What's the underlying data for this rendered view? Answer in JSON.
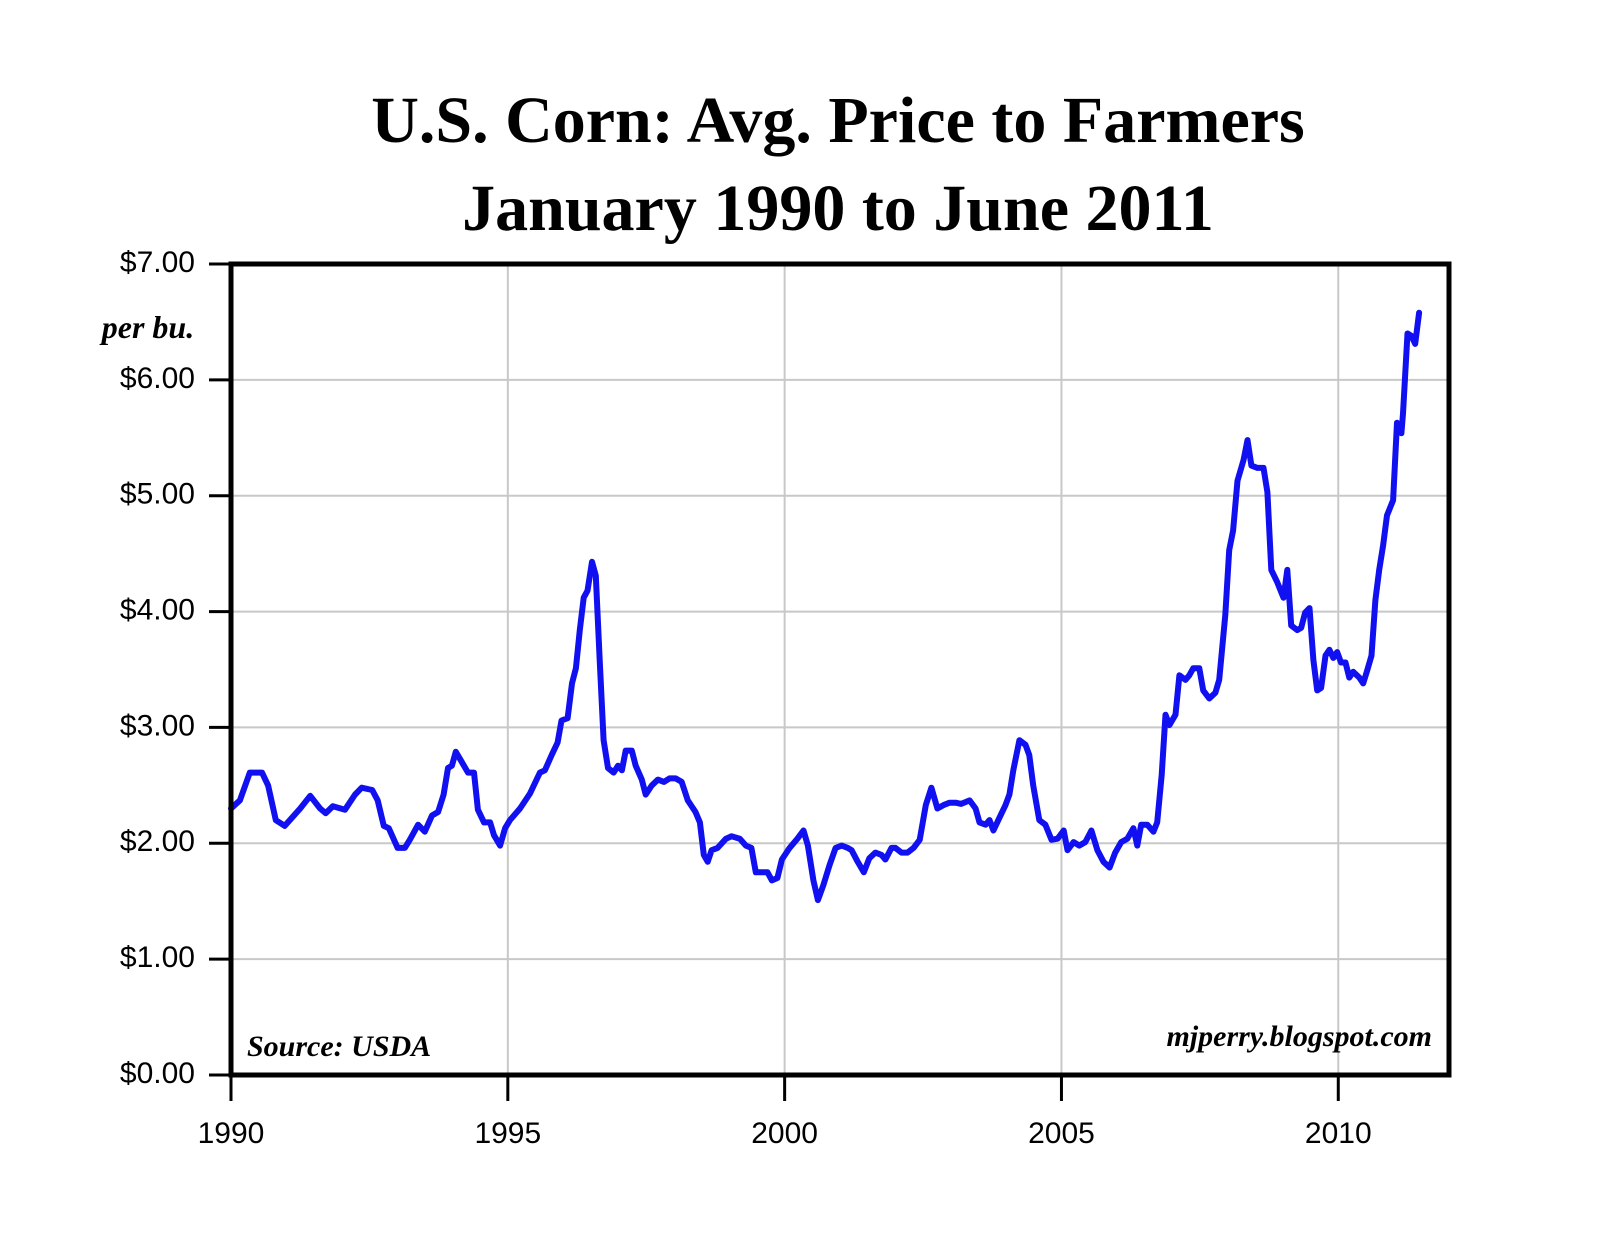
{
  "chart_data": {
    "type": "line",
    "title": "U.S. Corn: Avg. Price to Farmers",
    "subtitle": "January 1990 to June 2011",
    "y_label": "per bu.",
    "annotations": [
      "Source: USDA",
      "mjperry.blogspot.com"
    ],
    "xlim": [
      1990,
      2012
    ],
    "xticks": [
      1990,
      1995,
      2000,
      2005,
      2010
    ],
    "ylim": [
      0,
      7
    ],
    "yticks": [
      {
        "value": 0,
        "label": "$0.00"
      },
      {
        "value": 1,
        "label": "$1.00"
      },
      {
        "value": 2,
        "label": "$2.00"
      },
      {
        "value": 3,
        "label": "$3.00"
      },
      {
        "value": 4,
        "label": "$4.00"
      },
      {
        "value": 5,
        "label": "$5.00"
      },
      {
        "value": 6,
        "label": "$6.00"
      },
      {
        "value": 7,
        "label": "$7.00"
      }
    ],
    "grid": true,
    "x": [
      1990.0,
      1990.16,
      1990.34,
      1990.56,
      1990.67,
      1990.81,
      1990.97,
      1991.25,
      1991.43,
      1991.61,
      1991.71,
      1991.84,
      1992.06,
      1992.24,
      1992.36,
      1992.55,
      1992.65,
      1992.76,
      1992.85,
      1993.01,
      1993.14,
      1993.23,
      1993.38,
      1993.5,
      1993.63,
      1993.74,
      1993.84,
      1993.92,
      1993.99,
      1994.06,
      1994.17,
      1994.28,
      1994.39,
      1994.46,
      1994.57,
      1994.68,
      1994.75,
      1994.86,
      1994.95,
      1995.04,
      1995.22,
      1995.4,
      1995.58,
      1995.67,
      1995.79,
      1995.9,
      1995.97,
      1996.08,
      1996.16,
      1996.23,
      1996.3,
      1996.37,
      1996.44,
      1996.52,
      1996.59,
      1996.66,
      1996.73,
      1996.81,
      1996.91,
      1996.99,
      1997.06,
      1997.13,
      1997.24,
      1997.31,
      1997.42,
      1997.49,
      1997.6,
      1997.71,
      1997.82,
      1997.92,
      1998.03,
      1998.14,
      1998.25,
      1998.39,
      1998.47,
      1998.54,
      1998.61,
      1998.68,
      1998.79,
      1998.94,
      1999.04,
      1999.19,
      1999.3,
      1999.4,
      1999.48,
      1999.58,
      1999.69,
      1999.77,
      1999.87,
      1999.95,
      2000.09,
      2000.23,
      2000.34,
      2000.42,
      2000.52,
      2000.6,
      2000.7,
      2000.81,
      2000.92,
      2001.03,
      2001.14,
      2001.21,
      2001.32,
      2001.43,
      2001.53,
      2001.64,
      2001.75,
      2001.82,
      2001.93,
      2002.0,
      2002.11,
      2002.22,
      2002.33,
      2002.44,
      2002.55,
      2002.65,
      2002.76,
      2002.87,
      2002.98,
      2003.09,
      2003.19,
      2003.34,
      2003.45,
      2003.52,
      2003.63,
      2003.7,
      2003.77,
      2003.88,
      2003.99,
      2004.06,
      2004.13,
      2004.24,
      2004.35,
      2004.42,
      2004.49,
      2004.6,
      2004.71,
      2004.82,
      2004.93,
      2005.04,
      2005.11,
      2005.22,
      2005.32,
      2005.43,
      2005.54,
      2005.65,
      2005.76,
      2005.87,
      2005.97,
      2006.08,
      2006.19,
      2006.3,
      2006.37,
      2006.44,
      2006.55,
      2006.66,
      2006.73,
      2006.81,
      2006.88,
      2006.95,
      2007.06,
      2007.13,
      2007.24,
      2007.31,
      2007.38,
      2007.49,
      2007.56,
      2007.67,
      2007.78,
      2007.85,
      2007.96,
      2008.03,
      2008.1,
      2008.18,
      2008.29,
      2008.36,
      2008.43,
      2008.54,
      2008.65,
      2008.72,
      2008.79,
      2008.9,
      2009.01,
      2009.08,
      2009.15,
      2009.26,
      2009.33,
      2009.4,
      2009.48,
      2009.55,
      2009.62,
      2009.69,
      2009.77,
      2009.84,
      2009.91,
      2009.98,
      2010.05,
      2010.13,
      2010.2,
      2010.27,
      2010.38,
      2010.45,
      2010.52,
      2010.6,
      2010.67,
      2010.74,
      2010.81,
      2010.88,
      2010.99,
      2011.06,
      2011.14,
      2011.17,
      2011.25,
      2011.32,
      2011.39,
      2011.46
    ],
    "series": [
      {
        "name": "Avg. Price to Farmers",
        "color": "#1010f0",
        "values": [
          2.3,
          2.37,
          2.61,
          2.61,
          2.5,
          2.2,
          2.15,
          2.3,
          2.41,
          2.3,
          2.26,
          2.32,
          2.29,
          2.42,
          2.48,
          2.46,
          2.37,
          2.15,
          2.13,
          1.96,
          1.96,
          2.03,
          2.16,
          2.1,
          2.24,
          2.27,
          2.42,
          2.65,
          2.67,
          2.79,
          2.7,
          2.61,
          2.61,
          2.29,
          2.18,
          2.18,
          2.07,
          1.98,
          2.13,
          2.2,
          2.3,
          2.43,
          2.61,
          2.63,
          2.76,
          2.87,
          3.06,
          3.08,
          3.38,
          3.51,
          3.84,
          4.12,
          4.18,
          4.43,
          4.31,
          3.58,
          2.89,
          2.65,
          2.61,
          2.67,
          2.63,
          2.8,
          2.8,
          2.67,
          2.55,
          2.42,
          2.5,
          2.55,
          2.53,
          2.56,
          2.56,
          2.53,
          2.37,
          2.27,
          2.18,
          1.9,
          1.84,
          1.94,
          1.96,
          2.04,
          2.06,
          2.04,
          1.98,
          1.96,
          1.75,
          1.75,
          1.75,
          1.68,
          1.7,
          1.86,
          1.96,
          2.04,
          2.11,
          1.98,
          1.68,
          1.51,
          1.64,
          1.81,
          1.96,
          1.98,
          1.96,
          1.94,
          1.84,
          1.75,
          1.87,
          1.92,
          1.9,
          1.86,
          1.96,
          1.96,
          1.92,
          1.92,
          1.96,
          2.03,
          2.33,
          2.48,
          2.3,
          2.33,
          2.35,
          2.35,
          2.34,
          2.37,
          2.3,
          2.18,
          2.16,
          2.2,
          2.11,
          2.22,
          2.33,
          2.42,
          2.63,
          2.89,
          2.85,
          2.76,
          2.5,
          2.2,
          2.16,
          2.03,
          2.04,
          2.11,
          1.94,
          2.01,
          1.98,
          2.01,
          2.11,
          1.94,
          1.84,
          1.79,
          1.92,
          2.01,
          2.04,
          2.13,
          1.98,
          2.16,
          2.16,
          2.1,
          2.18,
          2.59,
          3.11,
          3.02,
          3.11,
          3.45,
          3.41,
          3.45,
          3.51,
          3.51,
          3.32,
          3.25,
          3.3,
          3.41,
          3.97,
          4.53,
          4.7,
          5.13,
          5.31,
          5.48,
          5.26,
          5.24,
          5.24,
          5.03,
          4.36,
          4.25,
          4.12,
          4.36,
          3.88,
          3.84,
          3.86,
          3.99,
          4.03,
          3.58,
          3.32,
          3.34,
          3.62,
          3.67,
          3.6,
          3.65,
          3.56,
          3.56,
          3.43,
          3.48,
          3.43,
          3.38,
          3.49,
          3.62,
          4.1,
          4.36,
          4.57,
          4.83,
          4.96,
          5.63,
          5.54,
          5.71,
          6.4,
          6.38,
          6.31,
          6.58
        ]
      }
    ]
  }
}
